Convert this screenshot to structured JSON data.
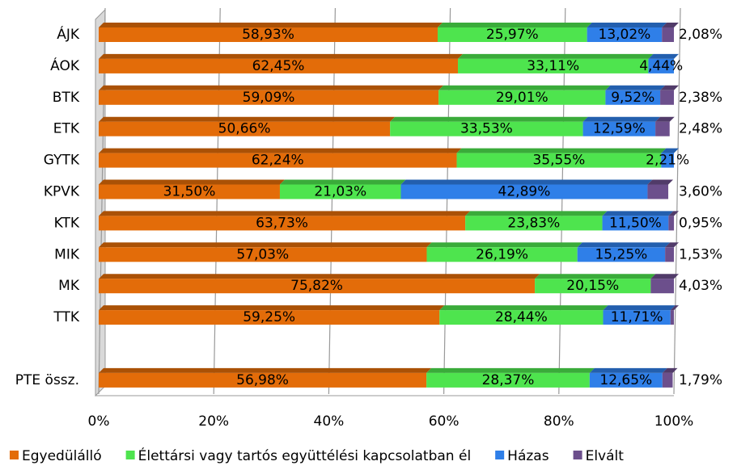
{
  "chart_data": {
    "type": "stacked_bar_horizontal",
    "categories": [
      "ÁJK",
      "ÁOK",
      "BTK",
      "ETK",
      "GYTK",
      "KPVK",
      "KTK",
      "MIK",
      "MK",
      "TTK",
      null,
      "PTE össz."
    ],
    "series": [
      {
        "name": "Egyedülálló",
        "color": "#e36c09",
        "values": [
          58.93,
          62.45,
          59.09,
          50.66,
          62.24,
          31.5,
          63.73,
          57.03,
          75.82,
          59.25,
          null,
          56.98
        ],
        "value_labels": [
          "58,93%",
          "62,45%",
          "59,09%",
          "50,66%",
          "62,24%",
          "31,50%",
          "63,73%",
          "57,03%",
          "75,82%",
          "59,25%",
          null,
          "56,98%"
        ]
      },
      {
        "name": "Élettársi vagy tartós együttélési kapcsolatban él",
        "color": "#4ee44e",
        "values": [
          25.97,
          33.11,
          29.01,
          33.53,
          35.55,
          21.03,
          23.83,
          26.19,
          20.15,
          28.44,
          null,
          28.37
        ],
        "value_labels": [
          "25,97%",
          "33,11%",
          "29,01%",
          "33,53%",
          "35,55%",
          "21,03%",
          "23,83%",
          "26,19%",
          "20,15%",
          "28,44%",
          null,
          "28,37%"
        ]
      },
      {
        "name": "Házas",
        "color": "#2f7fe8",
        "values": [
          13.02,
          4.44,
          9.52,
          12.59,
          2.21,
          42.89,
          11.5,
          15.25,
          null,
          11.71,
          null,
          12.65
        ],
        "value_labels": [
          "13,02%",
          "4,44%",
          "9,52%",
          "12,59%",
          "2,21%",
          "42,89%",
          "11,50%",
          "15,25%",
          null,
          "11,71%",
          null,
          "12,65%"
        ]
      },
      {
        "name": "Elvált",
        "color": "#6c4f8c",
        "values": [
          2.08,
          null,
          2.38,
          2.48,
          null,
          3.6,
          0.95,
          1.53,
          4.03,
          0.6,
          null,
          1.79
        ],
        "value_labels": [
          "2,08%",
          null,
          "2,38%",
          "2,48%",
          null,
          "3,60%",
          "0,95%",
          "1,53%",
          "4,03%",
          null,
          null,
          "1,79%"
        ]
      }
    ],
    "xlim": [
      0,
      100
    ],
    "xticks": [
      {
        "value": 0,
        "label": "0%"
      },
      {
        "value": 20,
        "label": "20%"
      },
      {
        "value": 40,
        "label": "40%"
      },
      {
        "value": 60,
        "label": "60%"
      },
      {
        "value": 80,
        "label": "80%"
      },
      {
        "value": 100,
        "label": "100%"
      }
    ],
    "grid": true,
    "legend": "bottom"
  }
}
